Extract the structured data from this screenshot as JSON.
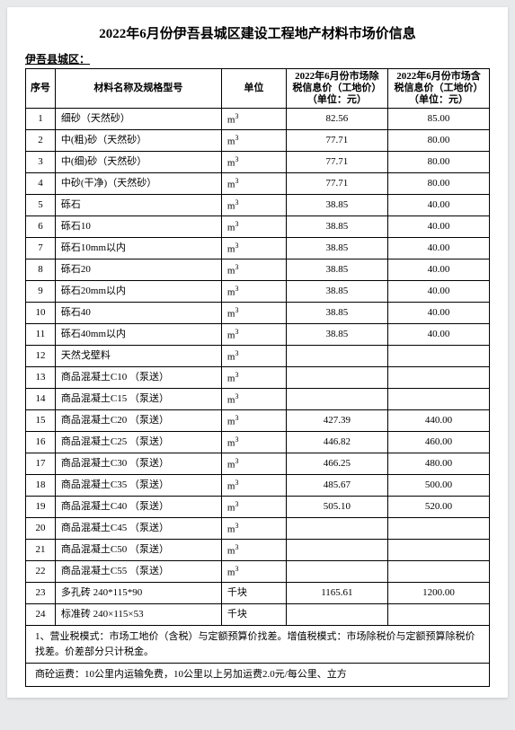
{
  "title": "2022年6月份伊吾县城区建设工程地产材料市场价信息",
  "subtitle": "伊吾县城区：",
  "headers": {
    "idx": "序号",
    "name": "材料名称及规格型号",
    "unit": "单位",
    "price_ex": "2022年6月份市场除税信息价（工地价）（单位：元）",
    "price_in": "2022年6月份市场含税信息价（工地价）（单位：元）"
  },
  "unit_m3_base": "m",
  "unit_m3_sup": "3",
  "unit_qk": "千块",
  "rows": [
    {
      "idx": "1",
      "name": "细砂（天然砂）",
      "unit": "m3",
      "ex": "82.56",
      "in": "85.00"
    },
    {
      "idx": "2",
      "name": "中(粗)砂（天然砂）",
      "unit": "m3",
      "ex": "77.71",
      "in": "80.00"
    },
    {
      "idx": "3",
      "name": "中(细)砂（天然砂）",
      "unit": "m3",
      "ex": "77.71",
      "in": "80.00"
    },
    {
      "idx": "4",
      "name": "中砂(干净)（天然砂）",
      "unit": "m3",
      "ex": "77.71",
      "in": "80.00"
    },
    {
      "idx": "5",
      "name": "砾石",
      "unit": "m3",
      "ex": "38.85",
      "in": "40.00"
    },
    {
      "idx": "6",
      "name": "砾石10",
      "unit": "m3",
      "ex": "38.85",
      "in": "40.00"
    },
    {
      "idx": "7",
      "name": "砾石10mm以内",
      "unit": "m3",
      "ex": "38.85",
      "in": "40.00"
    },
    {
      "idx": "8",
      "name": "砾石20",
      "unit": "m3",
      "ex": "38.85",
      "in": "40.00"
    },
    {
      "idx": "9",
      "name": "砾石20mm以内",
      "unit": "m3",
      "ex": "38.85",
      "in": "40.00"
    },
    {
      "idx": "10",
      "name": "砾石40",
      "unit": "m3",
      "ex": "38.85",
      "in": "40.00"
    },
    {
      "idx": "11",
      "name": "砾石40mm以内",
      "unit": "m3",
      "ex": "38.85",
      "in": "40.00"
    },
    {
      "idx": "12",
      "name": "天然戈壁料",
      "unit": "m3",
      "ex": "",
      "in": ""
    },
    {
      "idx": "13",
      "name": "商品混凝土C10 （泵送）",
      "unit": "m3",
      "ex": "",
      "in": ""
    },
    {
      "idx": "14",
      "name": "商品混凝土C15 （泵送）",
      "unit": "m3",
      "ex": "",
      "in": ""
    },
    {
      "idx": "15",
      "name": "商品混凝土C20 （泵送）",
      "unit": "m3",
      "ex": "427.39",
      "in": "440.00"
    },
    {
      "idx": "16",
      "name": "商品混凝土C25 （泵送）",
      "unit": "m3",
      "ex": "446.82",
      "in": "460.00"
    },
    {
      "idx": "17",
      "name": "商品混凝土C30 （泵送）",
      "unit": "m3",
      "ex": "466.25",
      "in": "480.00"
    },
    {
      "idx": "18",
      "name": "商品混凝土C35 （泵送）",
      "unit": "m3",
      "ex": "485.67",
      "in": "500.00"
    },
    {
      "idx": "19",
      "name": "商品混凝土C40 （泵送）",
      "unit": "m3",
      "ex": "505.10",
      "in": "520.00"
    },
    {
      "idx": "20",
      "name": "商品混凝土C45 （泵送）",
      "unit": "m3",
      "ex": "",
      "in": ""
    },
    {
      "idx": "21",
      "name": "商品混凝土C50 （泵送）",
      "unit": "m3",
      "ex": "",
      "in": ""
    },
    {
      "idx": "22",
      "name": "商品混凝土C55 （泵送）",
      "unit": "m3",
      "ex": "",
      "in": ""
    },
    {
      "idx": "23",
      "name": "多孔砖 240*115*90",
      "unit": "qk",
      "ex": "1165.61",
      "in": "1200.00"
    },
    {
      "idx": "24",
      "name": "标准砖 240×115×53",
      "unit": "qk",
      "ex": "",
      "in": ""
    }
  ],
  "note1": "1、营业税模式：市场工地价（含税）与定额预算价找差。增值税模式：市场除税价与定额预算除税价找差。价差部分只计税金。",
  "note2": "商砼运费：10公里内运输免费，10公里以上另加运费2.0元/每公里、立方"
}
